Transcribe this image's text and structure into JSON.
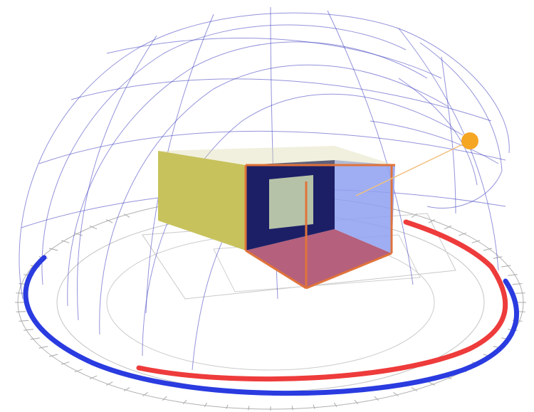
{
  "colors": {
    "background": "#ffffff",
    "dome_grid": "#3b3bbd",
    "ground_grid": "#9a9a9a",
    "ring_blue": "#2a3be0",
    "ring_red": "#ee3b3b",
    "sun": "#f5a623",
    "box_yellow_side": "#c8c25c",
    "box_dark_wall": "#1c1f66",
    "box_blue_glass": "#8ea0f0",
    "box_floor": "#b5607c",
    "box_edge": "#e0733a",
    "window": "#b6c2a8"
  },
  "elements": [
    "sky-dome",
    "ground-grid",
    "sun-path-rings",
    "room-box",
    "sun-icon"
  ]
}
